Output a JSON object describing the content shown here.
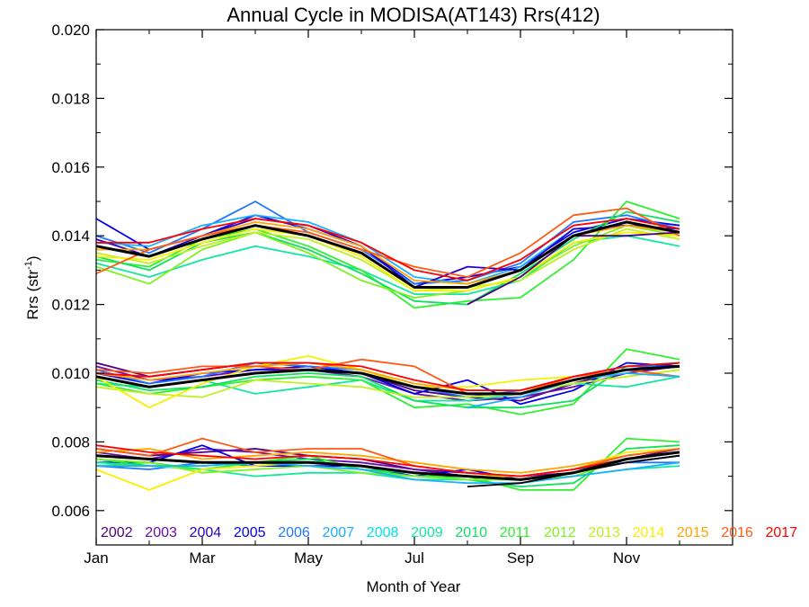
{
  "chart_data": {
    "type": "line",
    "title": "Annual Cycle in MODISA(AT143) Rrs(412)",
    "xlabel": "Month of Year",
    "ylabel_main": "Rrs (str",
    "ylabel_sup": "-1",
    "ylabel_end": ")",
    "xlim": [
      1,
      13
    ],
    "ylim": [
      0.005,
      0.02
    ],
    "x_ticks": [
      {
        "value": 1,
        "label": "Jan"
      },
      {
        "value": 3,
        "label": "Mar"
      },
      {
        "value": 5,
        "label": "May"
      },
      {
        "value": 7,
        "label": "Jul"
      },
      {
        "value": 9,
        "label": "Sep"
      },
      {
        "value": 11,
        "label": "Nov"
      }
    ],
    "y_ticks": [
      {
        "value": 0.006,
        "label": "0.006"
      },
      {
        "value": 0.008,
        "label": "0.008"
      },
      {
        "value": 0.01,
        "label": "0.010"
      },
      {
        "value": 0.012,
        "label": "0.012"
      },
      {
        "value": 0.014,
        "label": "0.014"
      },
      {
        "value": 0.016,
        "label": "0.016"
      },
      {
        "value": 0.018,
        "label": "0.018"
      },
      {
        "value": 0.02,
        "label": "0.020"
      }
    ],
    "grid": false,
    "legend_position": "bottom",
    "legend": [
      {
        "label": "2002",
        "color": "#4b0082"
      },
      {
        "label": "2003",
        "color": "#6a0dad"
      },
      {
        "label": "2004",
        "color": "#2a00c8"
      },
      {
        "label": "2005",
        "color": "#0000ee"
      },
      {
        "label": "2006",
        "color": "#1e78ff"
      },
      {
        "label": "2007",
        "color": "#1ab0ff"
      },
      {
        "label": "2008",
        "color": "#00e0e8"
      },
      {
        "label": "2009",
        "color": "#10e8a0"
      },
      {
        "label": "2010",
        "color": "#10e060"
      },
      {
        "label": "2011",
        "color": "#30f030"
      },
      {
        "label": "2012",
        "color": "#80f020"
      },
      {
        "label": "2013",
        "color": "#c0f020"
      },
      {
        "label": "2014",
        "color": "#f8f000"
      },
      {
        "label": "2015",
        "color": "#ffa500"
      },
      {
        "label": "2016",
        "color": "#ff5a14"
      },
      {
        "label": "2017",
        "color": "#ff0000"
      }
    ],
    "x": [
      1,
      2,
      3,
      4,
      5,
      6,
      7,
      8,
      9,
      10,
      11,
      12
    ],
    "climatology_color": "#000000",
    "groups": [
      {
        "climatology": [
          0.0137,
          0.0134,
          0.0139,
          0.0143,
          0.014,
          0.0135,
          0.0125,
          0.0125,
          0.013,
          0.014,
          0.0144,
          0.0141
        ],
        "series": [
          {
            "color": "#0000ee",
            "values": [
              0.0145,
              0.0136,
              0.014,
              0.0146,
              0.0142,
              0.0137,
              0.0126,
              0.0128,
              0.0131,
              0.0141,
              0.0145,
              0.0143
            ]
          },
          {
            "color": "#1e78ff",
            "values": [
              0.014,
              0.0135,
              0.0142,
              0.015,
              0.0141,
              0.0136,
              0.0126,
              0.0127,
              0.0132,
              0.0144,
              0.0146,
              0.0142
            ]
          },
          {
            "color": "#1ab0ff",
            "values": [
              0.0138,
              0.0137,
              0.0143,
              0.0146,
              0.0144,
              0.0138,
              0.0128,
              0.0126,
              0.0131,
              0.0142,
              0.0143,
              0.0141
            ]
          },
          {
            "color": "#2a00c8",
            "values": [
              0.0139,
              0.0134,
              0.014,
              0.0145,
              0.0143,
              0.0137,
              0.0125,
              0.0131,
              0.013,
              0.0142,
              0.0143,
              0.0142
            ]
          },
          {
            "color": "#10e8a0",
            "values": [
              0.0132,
              0.0128,
              0.0133,
              0.0137,
              0.0134,
              0.013,
              0.0123,
              0.0123,
              0.0127,
              0.0138,
              0.014,
              0.0137
            ]
          },
          {
            "color": "#30f030",
            "values": [
              0.0133,
              0.0131,
              0.0139,
              0.0142,
              0.0137,
              0.013,
              0.0119,
              0.0121,
              0.0122,
              0.0133,
              0.015,
              0.0145
            ]
          },
          {
            "color": "#10e060",
            "values": [
              0.0134,
              0.013,
              0.0138,
              0.0141,
              0.0136,
              0.0129,
              0.0121,
              0.012,
              0.0129,
              0.0139,
              0.0147,
              0.0144
            ]
          },
          {
            "color": "#80f020",
            "values": [
              0.0131,
              0.0126,
              0.0136,
              0.0141,
              0.0135,
              0.0127,
              0.0122,
              0.0124,
              0.0128,
              0.0137,
              0.0143,
              0.014
            ]
          },
          {
            "color": "#c0f020",
            "values": [
              0.0135,
              0.0132,
              0.0137,
              0.0141,
              0.0139,
              0.0133,
              0.0124,
              0.0125,
              0.0127,
              0.0136,
              0.0142,
              0.0139
            ]
          },
          {
            "color": "#f8f000",
            "values": [
              0.0134,
              0.0133,
              0.0138,
              0.0142,
              0.014,
              0.0134,
              0.0124,
              0.0124,
              0.0128,
              0.0138,
              0.0141,
              0.014
            ]
          },
          {
            "color": "#ffa500",
            "values": [
              0.0136,
              0.0136,
              0.014,
              0.0144,
              0.0142,
              0.0137,
              0.0127,
              0.0126,
              0.013,
              0.014,
              0.0143,
              0.0141
            ]
          },
          {
            "color": "#ff5a14",
            "values": [
              0.0129,
              0.0136,
              0.014,
              0.0143,
              0.0141,
              0.0136,
              0.0131,
              0.0128,
              0.0135,
              0.0146,
              0.0148,
              0.014
            ]
          },
          {
            "color": "#ff0000",
            "values": [
              0.0138,
              0.0138,
              0.0142,
              0.0145,
              0.0143,
              0.0138,
              0.013,
              0.0127,
              0.0133,
              0.0143,
              0.0145,
              0.0142
            ]
          },
          {
            "color": "#4b0082",
            "values": [
              null,
              null,
              null,
              null,
              null,
              null,
              null,
              0.012,
              0.0128,
              0.014,
              0.014,
              0.0141
            ]
          }
        ]
      },
      {
        "climatology": [
          0.0099,
          0.0096,
          0.0098,
          0.01,
          0.0101,
          0.01,
          0.0096,
          0.0094,
          0.0094,
          0.0098,
          0.0101,
          0.0102
        ],
        "series": [
          {
            "color": "#4b0082",
            "values": [
              0.0103,
              0.0099,
              0.0101,
              0.0103,
              0.0102,
              0.01,
              0.0095,
              0.0093,
              0.0092,
              0.0097,
              0.0101,
              0.0103
            ]
          },
          {
            "color": "#6a0dad",
            "values": [
              0.0102,
              0.0098,
              0.0099,
              0.0101,
              0.0101,
              0.0099,
              0.0094,
              0.0092,
              0.0093,
              0.0096,
              0.01,
              0.0102
            ]
          },
          {
            "color": "#0000ee",
            "values": [
              0.01,
              0.0097,
              0.01,
              0.0101,
              0.0102,
              0.01,
              0.0094,
              0.0098,
              0.0091,
              0.0095,
              0.0103,
              0.0102
            ]
          },
          {
            "color": "#1e78ff",
            "values": [
              0.0101,
              0.0097,
              0.0099,
              0.0103,
              0.0102,
              0.0101,
              0.0096,
              0.0093,
              0.0095,
              0.0099,
              0.0102,
              0.0102
            ]
          },
          {
            "color": "#10e8a0",
            "values": [
              0.0097,
              0.0096,
              0.0098,
              0.0094,
              0.0096,
              0.0098,
              0.0092,
              0.0092,
              0.0094,
              0.0097,
              0.0096,
              0.0099
            ]
          },
          {
            "color": "#30f030",
            "values": [
              0.0097,
              0.0094,
              0.0096,
              0.0098,
              0.0099,
              0.0098,
              0.009,
              0.0091,
              0.0088,
              0.0091,
              0.0107,
              0.0104
            ]
          },
          {
            "color": "#10e060",
            "values": [
              0.0098,
              0.0095,
              0.0096,
              0.0099,
              0.01,
              0.0099,
              0.0092,
              0.009,
              0.009,
              0.0092,
              0.0102,
              0.0103
            ]
          },
          {
            "color": "#c0f020",
            "values": [
              0.0096,
              0.0094,
              0.0093,
              0.0098,
              0.0097,
              0.0096,
              0.0093,
              0.0093,
              0.0094,
              0.0097,
              0.0099,
              0.0101
            ]
          },
          {
            "color": "#f8f000",
            "values": [
              0.0099,
              0.009,
              0.0097,
              0.0102,
              0.0105,
              0.0101,
              0.0096,
              0.0096,
              0.0098,
              0.0099,
              0.0101,
              0.0102
            ]
          },
          {
            "color": "#ffa500",
            "values": [
              0.01,
              0.0098,
              0.01,
              0.0102,
              0.0103,
              0.0101,
              0.0097,
              0.0095,
              0.0095,
              0.0098,
              0.0101,
              0.0102
            ]
          },
          {
            "color": "#ff5a14",
            "values": [
              0.0101,
              0.01,
              0.0102,
              0.0102,
              0.0101,
              0.0104,
              0.0102,
              0.0094,
              0.0094,
              0.0099,
              0.0101,
              0.0099
            ]
          },
          {
            "color": "#ff0000",
            "values": [
              0.01,
              0.0099,
              0.0101,
              0.0103,
              0.0103,
              0.0102,
              0.0098,
              0.0095,
              0.0095,
              0.0099,
              0.0102,
              0.0103
            ]
          },
          {
            "color": "#1ab0ff",
            "values": [
              null,
              null,
              null,
              null,
              null,
              null,
              null,
              0.009,
              0.0093,
              0.0098,
              0.01,
              0.0099
            ]
          }
        ]
      },
      {
        "climatology": [
          0.0076,
          0.0075,
          0.0074,
          0.0074,
          0.0074,
          0.0073,
          0.0071,
          0.007,
          0.0069,
          0.0071,
          0.0075,
          0.0077
        ],
        "series": [
          {
            "color": "#4b0082",
            "values": [
              0.0078,
              0.0076,
              0.0077,
              0.0078,
              0.0076,
              0.0075,
              0.0072,
              0.0071,
              0.007,
              0.0072,
              0.0075,
              0.0078
            ]
          },
          {
            "color": "#6a0dad",
            "values": [
              0.0077,
              0.0075,
              0.0078,
              0.0077,
              0.0075,
              0.0074,
              0.0072,
              0.007,
              0.007,
              0.0071,
              0.0075,
              0.0077
            ]
          },
          {
            "color": "#0000ee",
            "values": [
              0.0074,
              0.0074,
              0.0079,
              0.0073,
              0.0073,
              0.0073,
              0.007,
              0.0072,
              0.0069,
              0.0071,
              0.0074,
              0.0076
            ]
          },
          {
            "color": "#1e78ff",
            "values": [
              0.0073,
              0.0072,
              0.0074,
              0.0073,
              0.0074,
              0.0073,
              0.0071,
              0.007,
              0.007,
              0.0072,
              0.0074,
              0.0074
            ]
          },
          {
            "color": "#10e8a0",
            "values": [
              0.0074,
              0.0073,
              0.0072,
              0.007,
              0.0071,
              0.0071,
              0.0069,
              0.0069,
              0.0069,
              0.007,
              0.0072,
              0.0073
            ]
          },
          {
            "color": "#30f030",
            "values": [
              0.0073,
              0.0074,
              0.0072,
              0.0074,
              0.0076,
              0.0072,
              0.007,
              0.007,
              0.0066,
              0.0066,
              0.0081,
              0.008
            ]
          },
          {
            "color": "#10e060",
            "values": [
              0.0075,
              0.0073,
              0.0073,
              0.0074,
              0.0075,
              0.0072,
              0.0071,
              0.0069,
              0.0067,
              0.0068,
              0.0078,
              0.0079
            ]
          },
          {
            "color": "#80f020",
            "values": [
              0.0075,
              0.0074,
              0.0071,
              0.0072,
              0.0073,
              0.0071,
              0.007,
              0.0069,
              0.0069,
              0.007,
              0.0075,
              0.0077
            ]
          },
          {
            "color": "#f8f000",
            "values": [
              0.0072,
              0.0066,
              0.0072,
              0.0073,
              0.0074,
              0.0073,
              0.0071,
              0.007,
              0.007,
              0.0072,
              0.0077,
              0.0078
            ]
          },
          {
            "color": "#ffa500",
            "values": [
              0.0077,
              0.0078,
              0.0075,
              0.0076,
              0.0077,
              0.0076,
              0.0074,
              0.0072,
              0.0071,
              0.0073,
              0.0076,
              0.0078
            ]
          },
          {
            "color": "#ff5a14",
            "values": [
              0.0078,
              0.0076,
              0.0081,
              0.0077,
              0.0078,
              0.0078,
              0.0073,
              0.0071,
              0.007,
              0.0072,
              0.0076,
              0.0078
            ]
          },
          {
            "color": "#ff0000",
            "values": [
              0.0079,
              0.0077,
              0.0076,
              0.0075,
              0.0076,
              0.0075,
              0.0073,
              0.0071,
              0.007,
              0.0072,
              0.0075,
              0.0077
            ]
          },
          {
            "color": "#1ab0ff",
            "values": [
              0.0073,
              0.0073,
              0.0073,
              0.0074,
              0.0073,
              0.0072,
              0.0069,
              0.0068,
              0.0068,
              0.007,
              0.0072,
              0.0074
            ]
          },
          {
            "color": "#000000",
            "values": [
              null,
              null,
              null,
              null,
              null,
              null,
              null,
              0.0067,
              0.0068,
              0.0071,
              0.0074,
              0.0076
            ]
          }
        ]
      }
    ]
  }
}
